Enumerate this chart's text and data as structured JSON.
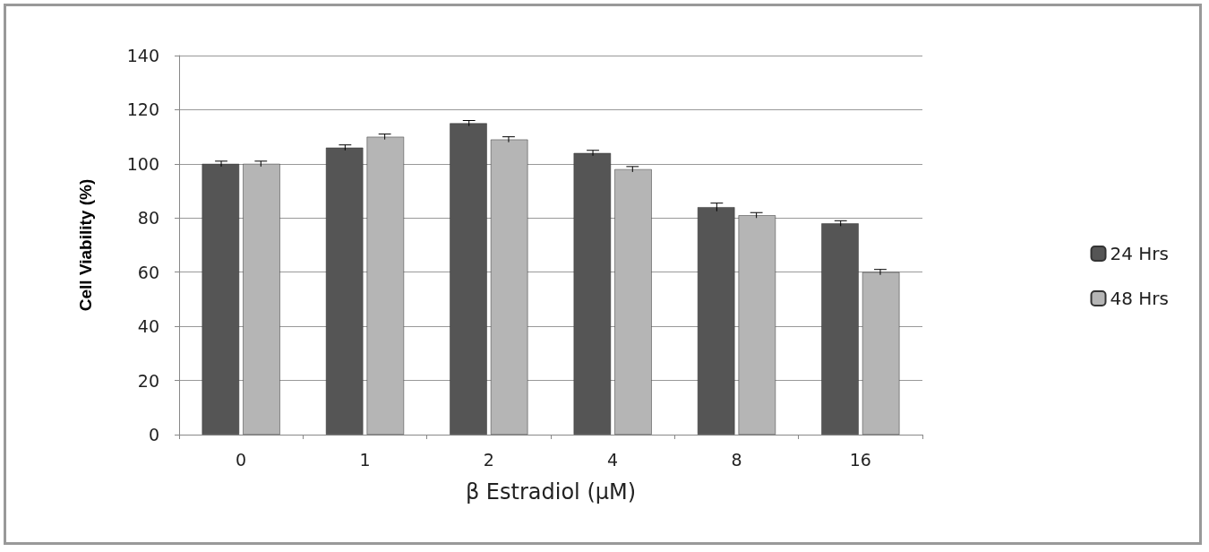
{
  "chart_data": {
    "type": "bar",
    "xlabel": "β Estradiol (µM)",
    "ylabel": "Cell Viability (%)",
    "categories": [
      "0",
      "1",
      "2",
      "4",
      "8",
      "16"
    ],
    "series": [
      {
        "name": "24 Hrs",
        "color": "#555555",
        "values": [
          100,
          106,
          115,
          104,
          84,
          78
        ],
        "errors": [
          1,
          1,
          1,
          1,
          1.5,
          1
        ]
      },
      {
        "name": "48 Hrs",
        "color": "#b5b5b5",
        "values": [
          100,
          110,
          109,
          98,
          81,
          60
        ],
        "errors": [
          1,
          1,
          1,
          1,
          1,
          1
        ]
      }
    ],
    "ylim": [
      0,
      140
    ],
    "yticks": [
      0,
      20,
      40,
      60,
      80,
      100,
      120,
      140
    ],
    "grid": "y",
    "legend": "right"
  }
}
